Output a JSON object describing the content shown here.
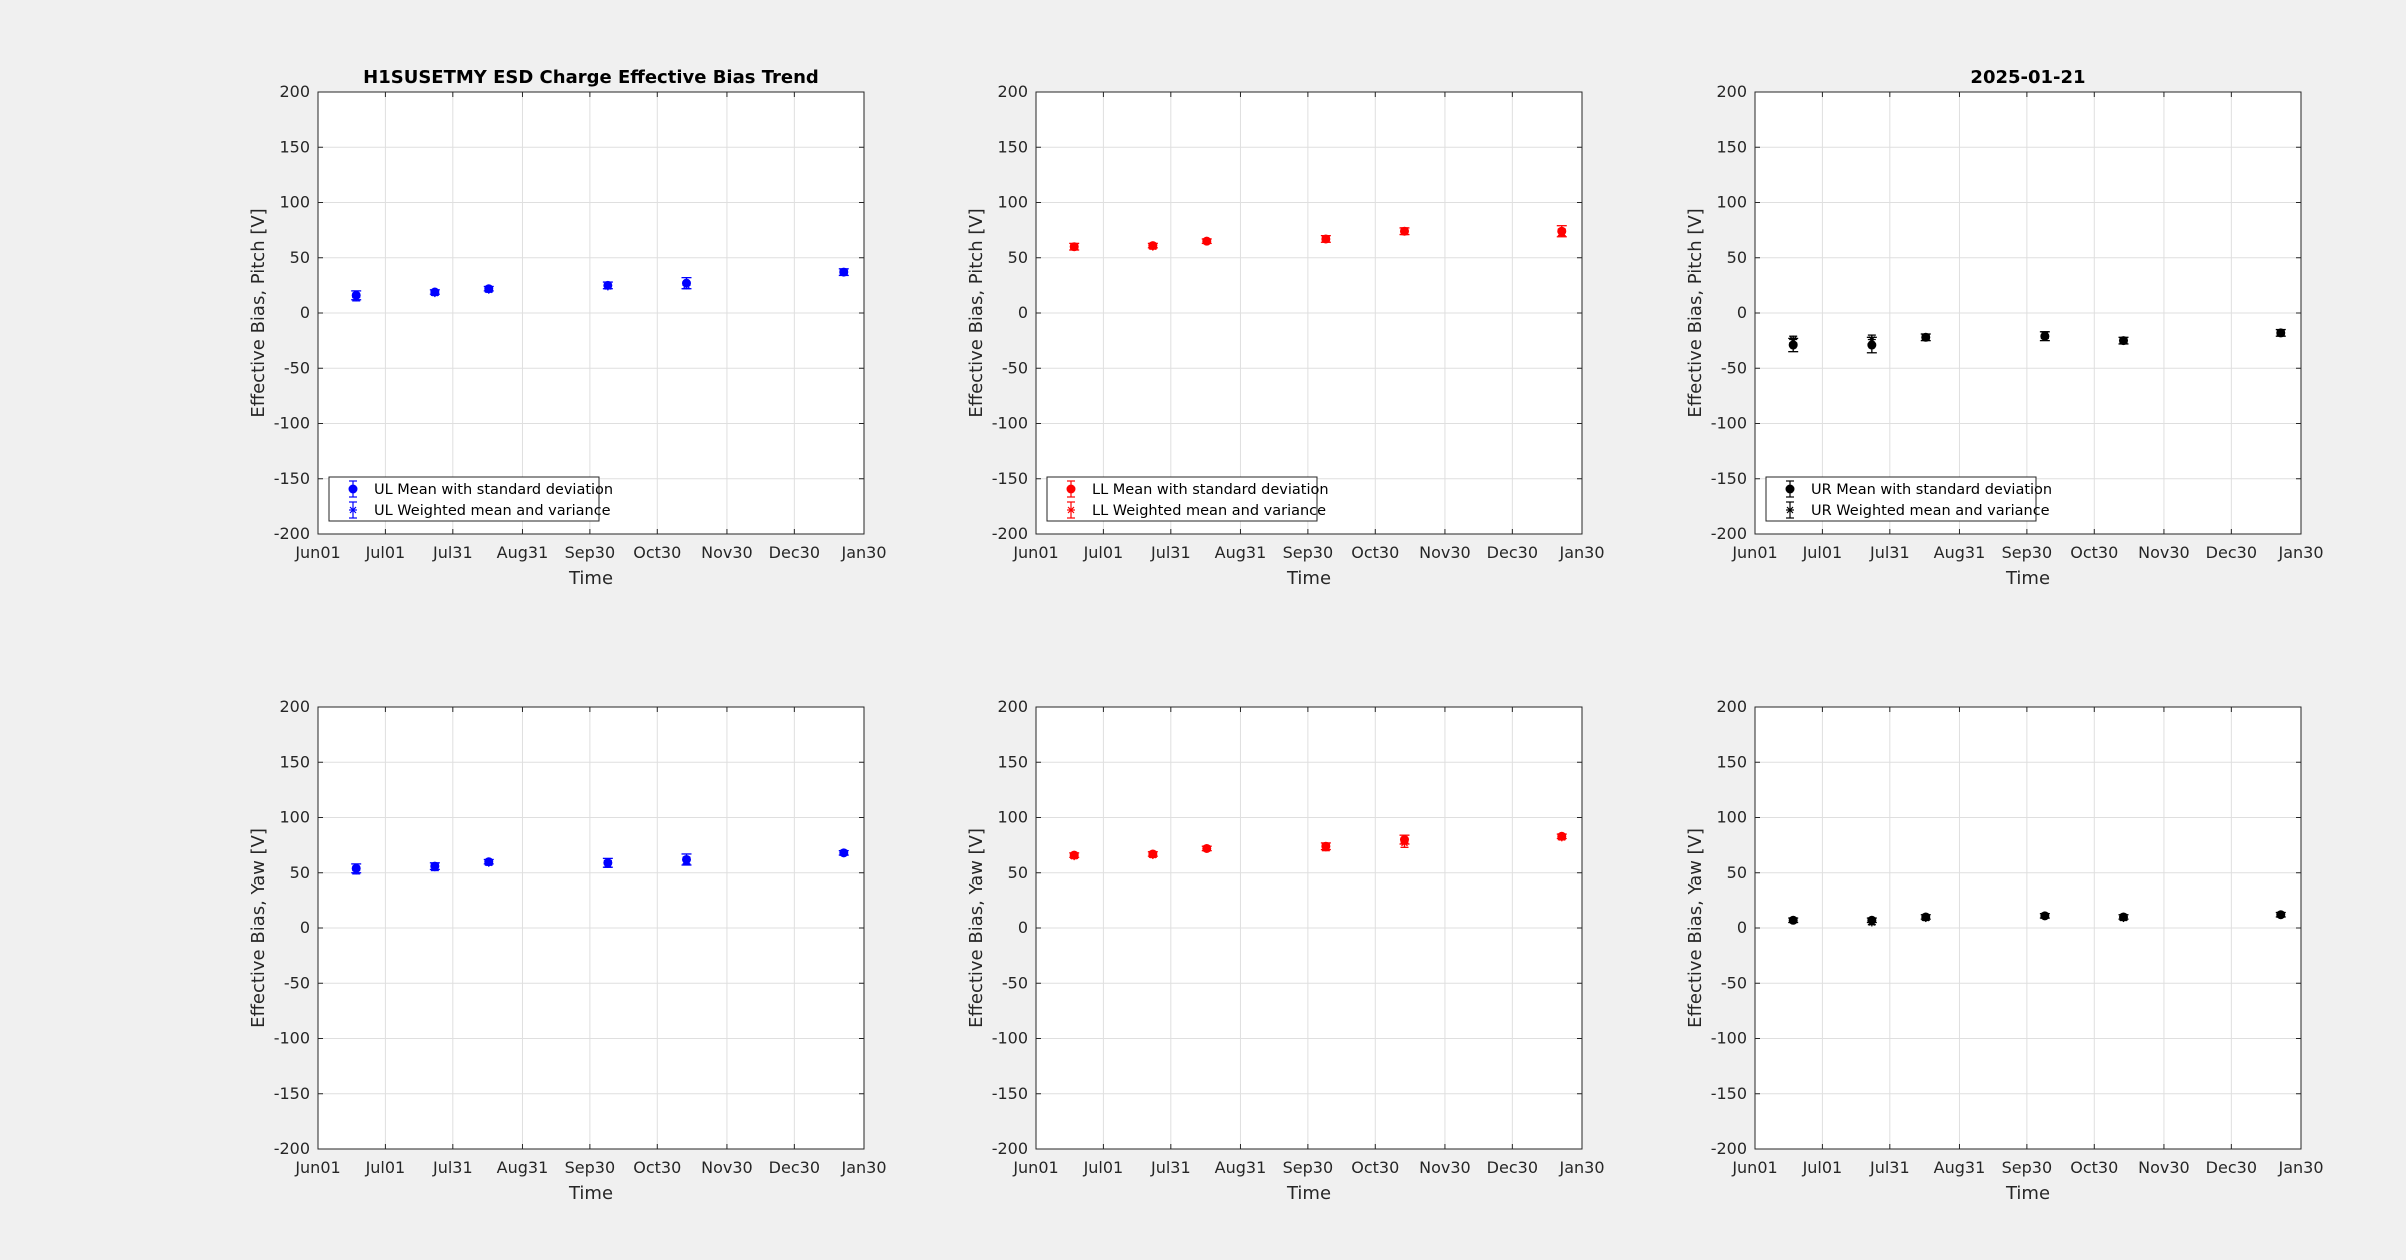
{
  "chart_data": [
    {
      "type": "scatter",
      "title": "H1SUSETMY ESD Charge Effective Bias Trend",
      "xlabel": "Time",
      "ylabel": "Effective Bias, Pitch [V]",
      "ylim": [
        -200,
        200
      ],
      "xlim": [
        "2024-06-01",
        "2025-01-30"
      ],
      "xticks": [
        "Jun01",
        "Jul01",
        "Jul31",
        "Aug31",
        "Sep30",
        "Oct30",
        "Nov30",
        "Dec30",
        "Jan30"
      ],
      "yticks": [
        "-200",
        "-150",
        "-100",
        "-50",
        "0",
        "50",
        "100",
        "150",
        "200"
      ],
      "grid": true,
      "color": "#0000ff",
      "legend_position": "bottom-left",
      "x": [
        "2024-06-18",
        "2024-07-23",
        "2024-08-16",
        "2024-10-08",
        "2024-11-12",
        "2025-01-21"
      ],
      "series": [
        {
          "name": "UL Mean with standard deviation",
          "marker": "dot",
          "values": [
            16,
            19,
            22,
            25,
            27,
            37
          ],
          "errors": [
            4,
            2,
            2,
            3,
            5,
            3
          ]
        },
        {
          "name": "UL Weighted mean and variance",
          "marker": "asterisk",
          "values": [
            14,
            18,
            21,
            24,
            25,
            37
          ],
          "errors": [
            3,
            2,
            2,
            2,
            3,
            2
          ]
        }
      ]
    },
    {
      "type": "scatter",
      "title": "",
      "xlabel": "Time",
      "ylabel": "Effective Bias, Pitch [V]",
      "ylim": [
        -200,
        200
      ],
      "xlim": [
        "2024-06-01",
        "2025-01-30"
      ],
      "xticks": [
        "Jun01",
        "Jul01",
        "Jul31",
        "Aug31",
        "Sep30",
        "Oct30",
        "Nov30",
        "Dec30",
        "Jan30"
      ],
      "yticks": [
        "-200",
        "-150",
        "-100",
        "-50",
        "0",
        "50",
        "100",
        "150",
        "200"
      ],
      "grid": true,
      "color": "#ff0000",
      "legend_position": "bottom-left",
      "x": [
        "2024-06-18",
        "2024-07-23",
        "2024-08-16",
        "2024-10-08",
        "2024-11-12",
        "2025-01-21"
      ],
      "series": [
        {
          "name": "LL Mean with standard deviation",
          "marker": "dot",
          "values": [
            60,
            61,
            65,
            67,
            74,
            74
          ],
          "errors": [
            3,
            2,
            2,
            3,
            3,
            5
          ]
        },
        {
          "name": "LL Weighted mean and variance",
          "marker": "asterisk",
          "values": [
            60,
            60,
            65,
            67,
            74,
            73
          ],
          "errors": [
            2,
            2,
            2,
            2,
            3,
            3
          ]
        }
      ]
    },
    {
      "type": "scatter",
      "title": "2025-01-21",
      "xlabel": "Time",
      "ylabel": "Effective Bias, Pitch [V]",
      "ylim": [
        -200,
        200
      ],
      "xlim": [
        "2024-06-01",
        "2025-01-30"
      ],
      "xticks": [
        "Jun01",
        "Jul01",
        "Jul31",
        "Aug31",
        "Sep30",
        "Oct30",
        "Nov30",
        "Dec30",
        "Jan30"
      ],
      "yticks": [
        "-200",
        "-150",
        "-100",
        "-50",
        "0",
        "50",
        "100",
        "150",
        "200"
      ],
      "grid": true,
      "color": "#000000",
      "legend_position": "bottom-left",
      "x": [
        "2024-06-18",
        "2024-07-23",
        "2024-08-16",
        "2024-10-08",
        "2024-11-12",
        "2025-01-21"
      ],
      "series": [
        {
          "name": "UR Mean with standard deviation",
          "marker": "dot",
          "values": [
            -29,
            -29,
            -22,
            -21,
            -25,
            -18
          ],
          "errors": [
            6,
            7,
            3,
            4,
            3,
            3
          ]
        },
        {
          "name": "UR Weighted mean and variance",
          "marker": "asterisk",
          "values": [
            -24,
            -24,
            -22,
            -20,
            -25,
            -18
          ],
          "errors": [
            3,
            4,
            2,
            3,
            2,
            2
          ]
        }
      ]
    },
    {
      "type": "scatter",
      "title": "",
      "xlabel": "Time",
      "ylabel": "Effective Bias, Yaw [V]",
      "ylim": [
        -200,
        200
      ],
      "xlim": [
        "2024-06-01",
        "2025-01-30"
      ],
      "xticks": [
        "Jun01",
        "Jul01",
        "Jul31",
        "Aug31",
        "Sep30",
        "Oct30",
        "Nov30",
        "Dec30",
        "Jan30"
      ],
      "yticks": [
        "-200",
        "-150",
        "-100",
        "-50",
        "0",
        "50",
        "100",
        "150",
        "200"
      ],
      "grid": true,
      "color": "#0000ff",
      "x": [
        "2024-06-18",
        "2024-07-23",
        "2024-08-16",
        "2024-10-08",
        "2024-11-12",
        "2025-01-21"
      ],
      "series": [
        {
          "name": "UL Mean with standard deviation",
          "marker": "dot",
          "values": [
            54,
            56,
            60,
            59,
            62,
            68
          ],
          "errors": [
            4,
            3,
            2,
            4,
            5,
            2
          ]
        },
        {
          "name": "UL Weighted mean and variance",
          "marker": "asterisk",
          "values": [
            52,
            55,
            59,
            58,
            61,
            68
          ],
          "errors": [
            3,
            3,
            2,
            3,
            3,
            2
          ]
        }
      ]
    },
    {
      "type": "scatter",
      "title": "",
      "xlabel": "Time",
      "ylabel": "Effective Bias, Yaw [V]",
      "ylim": [
        -200,
        200
      ],
      "xlim": [
        "2024-06-01",
        "2025-01-30"
      ],
      "xticks": [
        "Jun01",
        "Jul01",
        "Jul31",
        "Aug31",
        "Sep30",
        "Oct30",
        "Nov30",
        "Dec30",
        "Jan30"
      ],
      "yticks": [
        "-200",
        "-150",
        "-100",
        "-50",
        "0",
        "50",
        "100",
        "150",
        "200"
      ],
      "grid": true,
      "color": "#ff0000",
      "x": [
        "2024-06-18",
        "2024-07-23",
        "2024-08-16",
        "2024-10-08",
        "2024-11-12",
        "2025-01-21"
      ],
      "series": [
        {
          "name": "LL Mean with standard deviation",
          "marker": "dot",
          "values": [
            66,
            67,
            72,
            74,
            80,
            83
          ],
          "errors": [
            2,
            2,
            2,
            3,
            4,
            2
          ]
        },
        {
          "name": "LL Weighted mean and variance",
          "marker": "asterisk",
          "values": [
            65,
            66,
            72,
            73,
            77,
            82
          ],
          "errors": [
            2,
            2,
            2,
            3,
            4,
            2
          ]
        }
      ]
    },
    {
      "type": "scatter",
      "title": "",
      "xlabel": "Time",
      "ylabel": "Effective Bias, Yaw [V]",
      "ylim": [
        -200,
        200
      ],
      "xlim": [
        "2024-06-01",
        "2025-01-30"
      ],
      "xticks": [
        "Jun01",
        "Jul01",
        "Jul31",
        "Aug31",
        "Sep30",
        "Oct30",
        "Nov30",
        "Dec30",
        "Jan30"
      ],
      "yticks": [
        "-200",
        "-150",
        "-100",
        "-50",
        "0",
        "50",
        "100",
        "150",
        "200"
      ],
      "grid": true,
      "color": "#000000",
      "x": [
        "2024-06-18",
        "2024-07-23",
        "2024-08-16",
        "2024-10-08",
        "2024-11-12",
        "2025-01-21"
      ],
      "series": [
        {
          "name": "UR Mean with standard deviation",
          "marker": "dot",
          "values": [
            7,
            7,
            10,
            11,
            10,
            12
          ],
          "errors": [
            2,
            2,
            2,
            2,
            2,
            2
          ]
        },
        {
          "name": "UR Weighted mean and variance",
          "marker": "asterisk",
          "values": [
            7,
            5,
            9,
            11,
            9,
            12
          ],
          "errors": [
            2,
            2,
            2,
            2,
            2,
            2
          ]
        }
      ]
    }
  ]
}
